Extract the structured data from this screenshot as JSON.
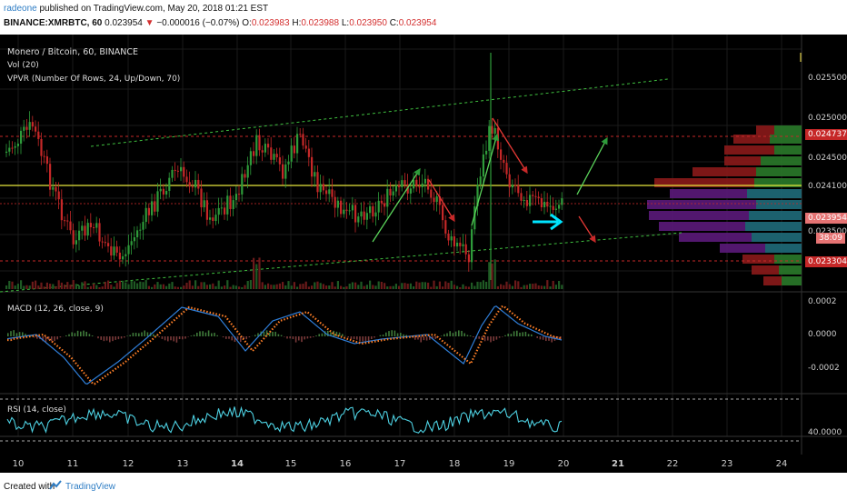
{
  "header": {
    "author": "radeone",
    "published": "published on TradingView.com, May 20, 2018 01:21 EST",
    "symbol": "BINANCE:XMRBTC, 60",
    "last": "0.023954",
    "change": "−0.000016 (−0.07%)",
    "o_label": "O:",
    "open": "0.023983",
    "h_label": "H:",
    "high": "0.023988",
    "l_label": "L:",
    "low": "0.023950",
    "c_label": "C:",
    "close": "0.023954"
  },
  "panes": {
    "main_title": "Monero / Bitcoin, 60, BINANCE",
    "vol_title": "Vol (20)",
    "vpvr_title": "VPVR (Number Of Rows, 24, Up/Down, 70)",
    "macd_title": "MACD (12, 26, close, 9)",
    "rsi_title": "RSI (14, close)"
  },
  "price_axis": {
    "ticks": [
      "0.025500",
      "0.025000",
      "0.024500",
      "0.024100",
      "0.023500"
    ],
    "labels": {
      "upper": "0.024737",
      "current": "0.023954",
      "countdown": "38:09",
      "lower": "0.023304"
    }
  },
  "macd_axis": {
    "ticks": [
      "0.0002",
      "0.0000",
      "-0.0002"
    ]
  },
  "rsi_axis": {
    "ticks": [
      "40.0000"
    ]
  },
  "time_axis": {
    "ticks": [
      "10",
      "11",
      "12",
      "13",
      "14",
      "15",
      "16",
      "17",
      "18",
      "19",
      "20",
      "21",
      "22",
      "23",
      "24"
    ]
  },
  "colors": {
    "up": "#2e9b3a",
    "down": "#c62828",
    "macd": "#2f7ed8",
    "signal": "#ff7f27",
    "rsi": "#4dd0e1",
    "cyan_arrow": "#00e5ff",
    "yellow_line": "#e6e63c"
  },
  "footer": {
    "created_with": "Created with",
    "brand": "TradingView"
  }
}
